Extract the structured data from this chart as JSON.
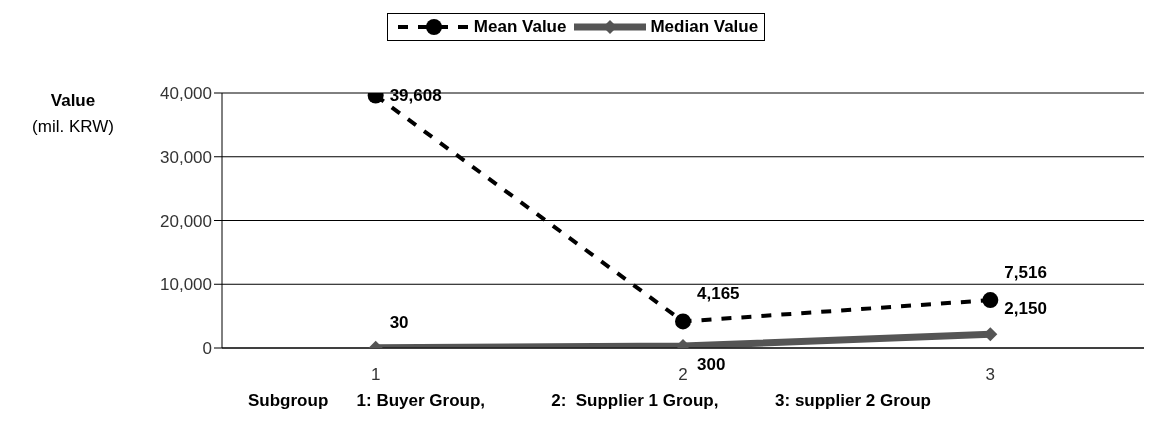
{
  "chart_data": {
    "type": "line",
    "categories": [
      "1",
      "2",
      "3"
    ],
    "series": [
      {
        "name": "Mean Value",
        "color": "#000000",
        "values": [
          39608,
          4165,
          7516
        ],
        "value_labels": [
          "39,608",
          "4,165",
          "7,516"
        ],
        "line_style": "dashed",
        "marker": "circle"
      },
      {
        "name": "Median Value",
        "color": "#555555",
        "values": [
          30,
          300,
          2150
        ],
        "value_labels": [
          "30",
          "300",
          "2,150"
        ],
        "line_style": "solid",
        "marker": "diamond"
      }
    ],
    "ylabel": "Value\n(mil. KRW)",
    "xlabel": "Subgroup      1: Buyer Group,              2:  Supplier 1 Group,            3: supplier 2 Group",
    "ylim": [
      0,
      40000
    ],
    "yticks": [
      0,
      {
        "value": 10000,
        "label": "10,000"
      },
      {
        "value": 20000,
        "label": "20,000"
      },
      {
        "value": 30000,
        "label": "30,000"
      },
      {
        "value": 40000,
        "label": "40,000"
      }
    ],
    "grid": "y",
    "legend": "top"
  }
}
